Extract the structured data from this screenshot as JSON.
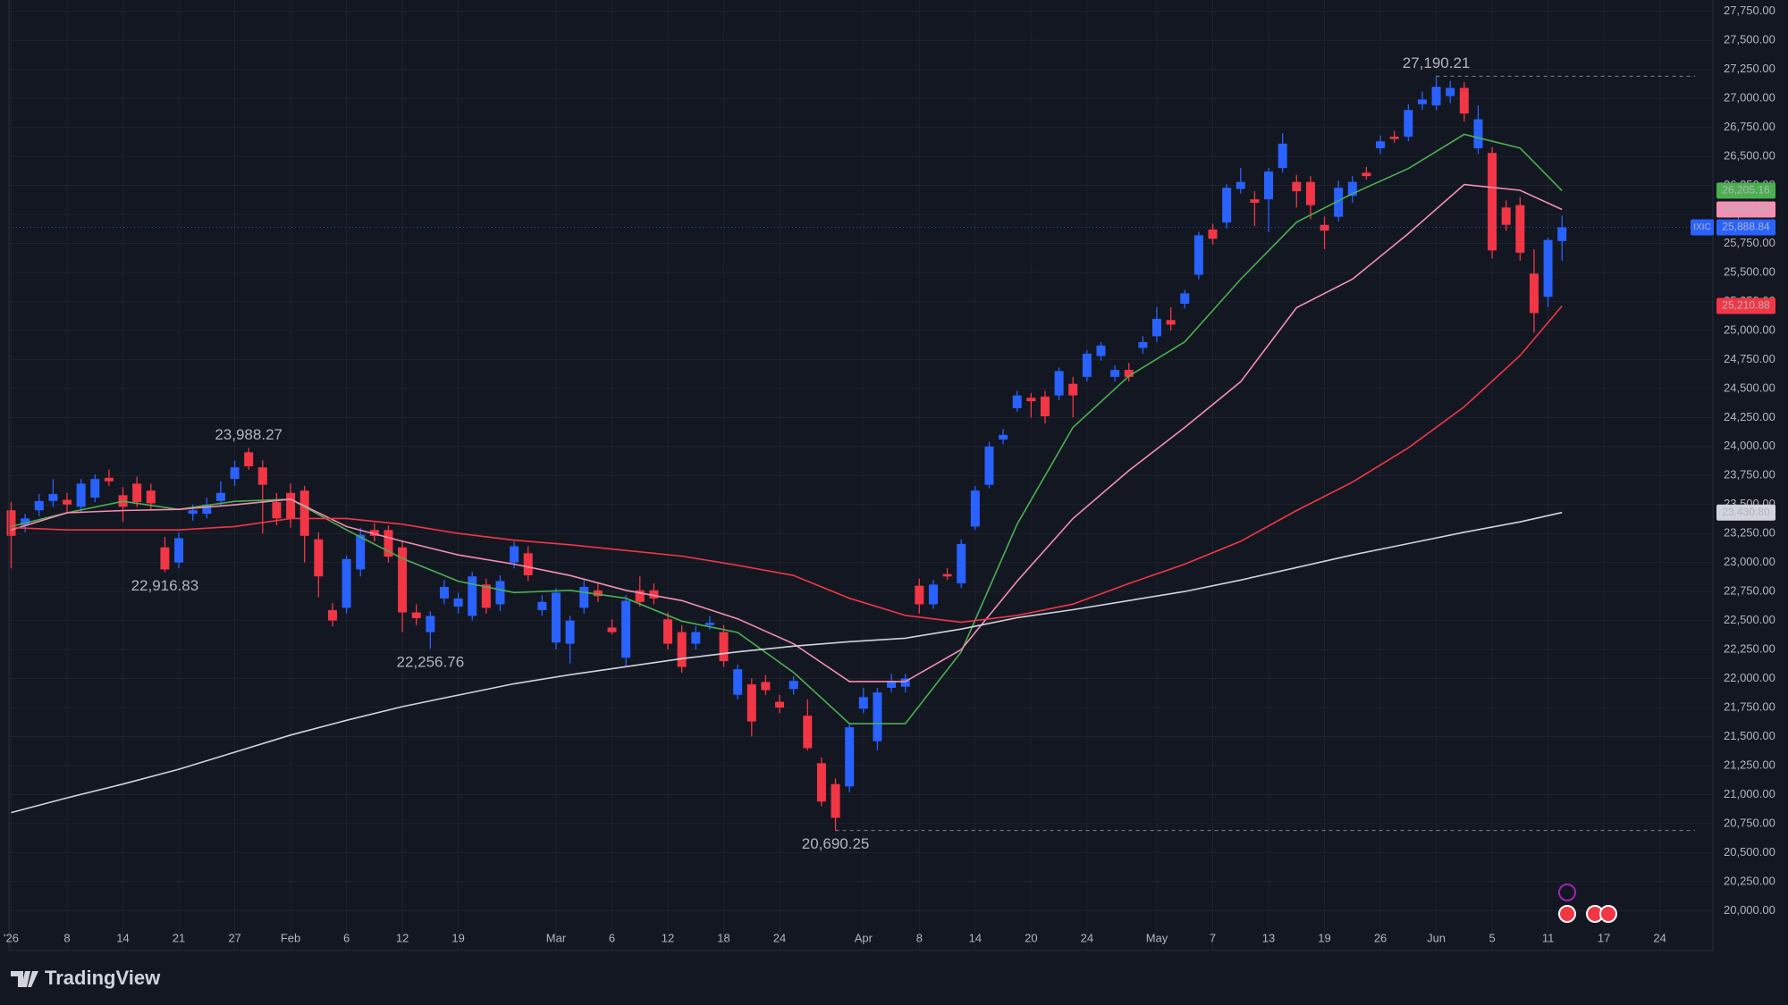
{
  "chart_data": {
    "type": "candlestick",
    "ylim": [
      19656,
      27848
    ],
    "xlim": [
      -0.16,
      121.8
    ],
    "grid": true,
    "up_color": "#2962ff",
    "down_color": "#f23645",
    "yticks": [
      {
        "value": 20000,
        "label": "20,000.00"
      },
      {
        "value": 20250,
        "label": "20,250.00"
      },
      {
        "value": 20500,
        "label": "20,500.00"
      },
      {
        "value": 20750,
        "label": "20,750.00"
      },
      {
        "value": 21000,
        "label": "21,000.00"
      },
      {
        "value": 21250,
        "label": "21,250.00"
      },
      {
        "value": 21500,
        "label": "21,500.00"
      },
      {
        "value": 21750,
        "label": "21,750.00"
      },
      {
        "value": 22000,
        "label": "22,000.00"
      },
      {
        "value": 22250,
        "label": "22,250.00"
      },
      {
        "value": 22500,
        "label": "22,500.00"
      },
      {
        "value": 22750,
        "label": "22,750.00"
      },
      {
        "value": 23000,
        "label": "23,000.00"
      },
      {
        "value": 23250,
        "label": "23,250.00"
      },
      {
        "value": 23500,
        "label": "23,500.00"
      },
      {
        "value": 23750,
        "label": "23,750.00"
      },
      {
        "value": 24000,
        "label": "24,000.00"
      },
      {
        "value": 24250,
        "label": "24,250.00"
      },
      {
        "value": 24500,
        "label": "24,500.00"
      },
      {
        "value": 24750,
        "label": "24,750.00"
      },
      {
        "value": 25000,
        "label": "25,000.00"
      },
      {
        "value": 25250,
        "label": "25,250.00"
      },
      {
        "value": 25500,
        "label": "25,500.00"
      },
      {
        "value": 25750,
        "label": "25,750.00"
      },
      {
        "value": 26000,
        "label": "26,000.00"
      },
      {
        "value": 26250,
        "label": "26,250.00"
      },
      {
        "value": 26500,
        "label": "26,500.00"
      },
      {
        "value": 26750,
        "label": "26,750.00"
      },
      {
        "value": 27000,
        "label": "27,000.00"
      },
      {
        "value": 27250,
        "label": "27,250.00"
      },
      {
        "value": 27500,
        "label": "27,500.00"
      },
      {
        "value": 27750,
        "label": "27,750.00"
      }
    ],
    "xticks": [
      {
        "value": 0,
        "label": "'26"
      },
      {
        "value": 4,
        "label": "8"
      },
      {
        "value": 8,
        "label": "14"
      },
      {
        "value": 12,
        "label": "21"
      },
      {
        "value": 16,
        "label": "27"
      },
      {
        "value": 20,
        "label": "Feb"
      },
      {
        "value": 24,
        "label": "6"
      },
      {
        "value": 28,
        "label": "12"
      },
      {
        "value": 32,
        "label": "19"
      },
      {
        "value": 39,
        "label": "Mar"
      },
      {
        "value": 43,
        "label": "6"
      },
      {
        "value": 47,
        "label": "12"
      },
      {
        "value": 51,
        "label": "18"
      },
      {
        "value": 55,
        "label": "24"
      },
      {
        "value": 61,
        "label": "Apr"
      },
      {
        "value": 65,
        "label": "8"
      },
      {
        "value": 69,
        "label": "14"
      },
      {
        "value": 73,
        "label": "20"
      },
      {
        "value": 77,
        "label": "24"
      },
      {
        "value": 82,
        "label": "May"
      },
      {
        "value": 86,
        "label": "7"
      },
      {
        "value": 90,
        "label": "13"
      },
      {
        "value": 94,
        "label": "19"
      },
      {
        "value": 98,
        "label": "26"
      },
      {
        "value": 102,
        "label": "Jun"
      },
      {
        "value": 106,
        "label": "5"
      },
      {
        "value": 110,
        "label": "11"
      },
      {
        "value": 114,
        "label": "17"
      },
      {
        "value": 118,
        "label": "24"
      }
    ],
    "series": [
      {
        "name": "IXIC",
        "type": "candlestick",
        "color": "#2962ff",
        "last_label": "25,888.84",
        "open": [
          23450,
          23320,
          23450,
          23530,
          23540,
          23480,
          23560,
          23730,
          23580,
          23680,
          23620,
          23130,
          23000,
          23420,
          23420,
          23530,
          23720,
          23950,
          23820,
          23520,
          23600,
          23620,
          23200,
          22590,
          22610,
          22940,
          23280,
          23280,
          23130,
          22570,
          22400,
          22690,
          22620,
          22540,
          22810,
          22640,
          23000,
          23080,
          22590,
          22310,
          22300,
          22610,
          22760,
          22440,
          22180,
          22760,
          22760,
          22510,
          22400,
          22300,
          22460,
          22400,
          21860,
          21950,
          21970,
          21800,
          21910,
          21680,
          21270,
          21090,
          21070,
          21740,
          21460,
          21920,
          21930,
          22800,
          22640,
          22900,
          22820,
          23310,
          23670,
          24060,
          24330,
          24420,
          24430,
          24440,
          24540,
          24600,
          24780,
          24600,
          24660,
          24850,
          24950,
          25090,
          25230,
          25480,
          25870,
          25930,
          26220,
          26130,
          26130,
          26400,
          26280,
          26280,
          25910,
          25980,
          26160,
          26360,
          26570,
          26670,
          26670,
          26950,
          26940,
          27020,
          27090,
          26570,
          26530,
          26060,
          26080,
          25490,
          25290,
          25770
        ],
        "high": [
          23520,
          23420,
          23590,
          23720,
          23600,
          23720,
          23760,
          23800,
          23650,
          23740,
          23680,
          23220,
          23260,
          23500,
          23560,
          23700,
          23880,
          23988.27,
          23880,
          23600,
          23680,
          23660,
          23260,
          22650,
          23060,
          23300,
          23340,
          23320,
          23180,
          22640,
          22580,
          22850,
          22740,
          22920,
          22860,
          22890,
          23180,
          23140,
          22720,
          22780,
          22540,
          22850,
          22820,
          22510,
          22720,
          22880,
          22820,
          22570,
          22460,
          22450,
          22540,
          22460,
          22120,
          22000,
          22030,
          21860,
          22020,
          21820,
          21320,
          21140,
          21620,
          21920,
          21920,
          22040,
          22040,
          22860,
          22850,
          22950,
          23200,
          23660,
          24040,
          24150,
          24480,
          24460,
          24480,
          24680,
          24600,
          24830,
          24900,
          24700,
          24720,
          24950,
          25200,
          25200,
          25350,
          25850,
          25920,
          26260,
          26400,
          26200,
          26400,
          26700,
          26340,
          26330,
          25980,
          26290,
          26330,
          26410,
          26680,
          26720,
          26950,
          27060,
          27190.21,
          27150,
          27140,
          26940,
          26580,
          26120,
          26150,
          25700,
          25800,
          25990
        ],
        "low": [
          22950,
          23260,
          23400,
          23480,
          23420,
          23430,
          23520,
          23660,
          23350,
          23480,
          23460,
          22916.83,
          22950,
          23360,
          23380,
          23480,
          23660,
          23800,
          23250,
          23320,
          23300,
          23000,
          22700,
          22450,
          22560,
          22880,
          23180,
          23000,
          22400,
          22460,
          22256.76,
          22640,
          22560,
          22500,
          22560,
          22580,
          22950,
          22840,
          22540,
          22250,
          22130,
          22560,
          22660,
          22380,
          22100,
          22620,
          22640,
          22250,
          22050,
          22250,
          22420,
          22100,
          21820,
          21500,
          21860,
          21700,
          21860,
          21380,
          20900,
          20690.25,
          21020,
          21700,
          21380,
          21880,
          21880,
          22560,
          22600,
          22850,
          22780,
          23280,
          23640,
          24020,
          24300,
          24250,
          24200,
          24400,
          24250,
          24560,
          24740,
          24560,
          24560,
          24800,
          24900,
          25000,
          25190,
          25440,
          25740,
          25880,
          26180,
          25900,
          25850,
          26360,
          26060,
          25960,
          25700,
          25940,
          26100,
          26300,
          26520,
          26620,
          26630,
          26900,
          26900,
          26960,
          26800,
          26520,
          25620,
          25860,
          25600,
          24980,
          25200,
          25600
        ],
        "close": [
          23230,
          23380,
          23530,
          23590,
          23500,
          23680,
          23720,
          23700,
          23480,
          23520,
          23510,
          22940,
          23210,
          23450,
          23500,
          23600,
          23820,
          23830,
          23670,
          23380,
          23380,
          23230,
          22880,
          22500,
          23030,
          23240,
          23230,
          23050,
          22570,
          22520,
          22540,
          22790,
          22690,
          22880,
          22610,
          22840,
          23140,
          22890,
          22660,
          22740,
          22500,
          22790,
          22710,
          22400,
          22670,
          22660,
          22690,
          22300,
          22100,
          22400,
          22480,
          22150,
          22080,
          21630,
          21900,
          21750,
          21980,
          21400,
          20940,
          20800,
          21580,
          21840,
          21880,
          21980,
          22000,
          22640,
          22810,
          22880,
          23160,
          23620,
          24000,
          24100,
          24440,
          24390,
          24260,
          24650,
          24440,
          24800,
          24870,
          24660,
          24600,
          24900,
          25100,
          25050,
          25320,
          25820,
          25790,
          26230,
          26280,
          26100,
          26370,
          26610,
          26200,
          26080,
          25860,
          26230,
          26280,
          26330,
          26630,
          26650,
          26900,
          26990,
          27100,
          27090,
          26870,
          26820,
          25690,
          25910,
          25670,
          25150,
          25780,
          25888.84
        ]
      },
      {
        "type": "line",
        "color": "#4caf50",
        "last_label": "26,205.16",
        "x": [
          0,
          4,
          8,
          12,
          16,
          20,
          24,
          28,
          32,
          36,
          40,
          44,
          48,
          52,
          56,
          60,
          64,
          68,
          72,
          76,
          80,
          84,
          88,
          92,
          96,
          100,
          104,
          108,
          111
        ],
        "values": [
          23310,
          23429,
          23527,
          23458,
          23527,
          23546,
          23281,
          23035,
          22839,
          22741,
          22760,
          22692,
          22495,
          22397,
          22053,
          21611,
          21611,
          22230,
          23330,
          24165,
          24607,
          24902,
          25442,
          25933,
          26179,
          26395,
          26690,
          26572,
          26205.16
        ]
      },
      {
        "type": "line",
        "color": "#f48fb1",
        "last_label": "26,042.88",
        "x": [
          0,
          4,
          8,
          12,
          16,
          20,
          24,
          28,
          32,
          36,
          40,
          44,
          48,
          52,
          56,
          60,
          64,
          68,
          72,
          76,
          80,
          84,
          88,
          92,
          96,
          100,
          104,
          108,
          111
        ],
        "values": [
          23281,
          23429,
          23448,
          23458,
          23497,
          23546,
          23310,
          23183,
          23065,
          22986,
          22888,
          22760,
          22672,
          22515,
          22299,
          21974,
          21974,
          22250,
          22839,
          23379,
          23792,
          24165,
          24558,
          25196,
          25442,
          25835,
          26257,
          26208,
          26042.88
        ]
      },
      {
        "type": "line",
        "color": "#f23645",
        "last_label": "25,210.88",
        "x": [
          0,
          4,
          8,
          12,
          16,
          20,
          24,
          28,
          32,
          36,
          40,
          44,
          48,
          52,
          56,
          60,
          64,
          68,
          72,
          76,
          80,
          84,
          88,
          92,
          96,
          100,
          104,
          108,
          111
        ],
        "values": [
          23301,
          23281,
          23281,
          23281,
          23310,
          23379,
          23379,
          23330,
          23251,
          23192,
          23153,
          23104,
          23055,
          22976,
          22888,
          22692,
          22544,
          22485,
          22544,
          22642,
          22819,
          22986,
          23183,
          23448,
          23693,
          23988,
          24342,
          24784,
          25210.88
        ]
      },
      {
        "type": "line",
        "color": "#d1d4dc",
        "last_label": "23,430.80",
        "x": [
          0,
          4,
          8,
          12,
          16,
          20,
          24,
          28,
          32,
          36,
          40,
          44,
          48,
          52,
          56,
          60,
          64,
          68,
          72,
          76,
          80,
          84,
          88,
          92,
          96,
          100,
          104,
          108,
          111
        ],
        "values": [
          20845,
          20972,
          21090,
          21218,
          21365,
          21513,
          21640,
          21758,
          21857,
          21955,
          22033,
          22102,
          22171,
          22230,
          22279,
          22318,
          22348,
          22426,
          22524,
          22593,
          22672,
          22750,
          22849,
          22957,
          23065,
          23163,
          23261,
          23350,
          23430.8
        ]
      }
    ],
    "annotations": [
      {
        "x": 17,
        "value": 23988.27,
        "label": "23,988.27"
      },
      {
        "x": 11,
        "value": 22916.83,
        "label": "22,916.83"
      },
      {
        "x": 30,
        "value": 22256.76,
        "label": "22,256.76"
      },
      {
        "x": 59,
        "value": 20690.25,
        "label": "20,690.25"
      },
      {
        "x": 102,
        "value": 27190.21,
        "label": "27,190.21"
      }
    ]
  },
  "footer": {
    "brand": "TradingView"
  }
}
